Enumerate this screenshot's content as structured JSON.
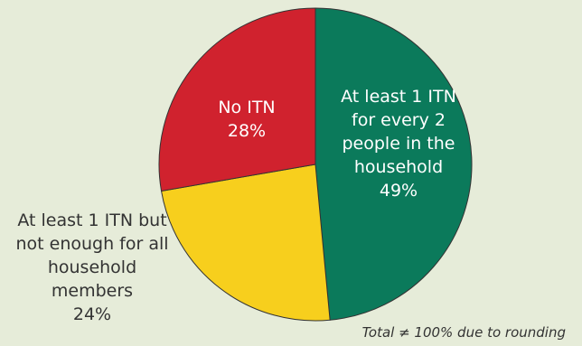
{
  "chart_data": {
    "type": "pie",
    "slices": [
      {
        "label_lines": [
          "At least 1 ITN",
          "for every 2",
          "people in the",
          "household"
        ],
        "value": 49,
        "value_text": "49%",
        "color": "#0b7a5b",
        "text_color": "#ffffff",
        "label_position": "inside"
      },
      {
        "label_lines": [
          "At least 1 ITN but",
          "not enough for all",
          "household",
          "members"
        ],
        "value": 24,
        "value_text": "24%",
        "color": "#f7cf1d",
        "text_color": "#333333",
        "label_position": "outside-left"
      },
      {
        "label_lines": [
          "No ITN"
        ],
        "value": 28,
        "value_text": "28%",
        "color": "#d0222e",
        "text_color": "#ffffff",
        "label_position": "inside"
      }
    ],
    "start": "12 o'clock",
    "direction": "clockwise",
    "footnote": "Total ≠ 100% due to rounding"
  },
  "colors": {
    "background": "#e6ecd9",
    "slice_border": "#333333"
  }
}
